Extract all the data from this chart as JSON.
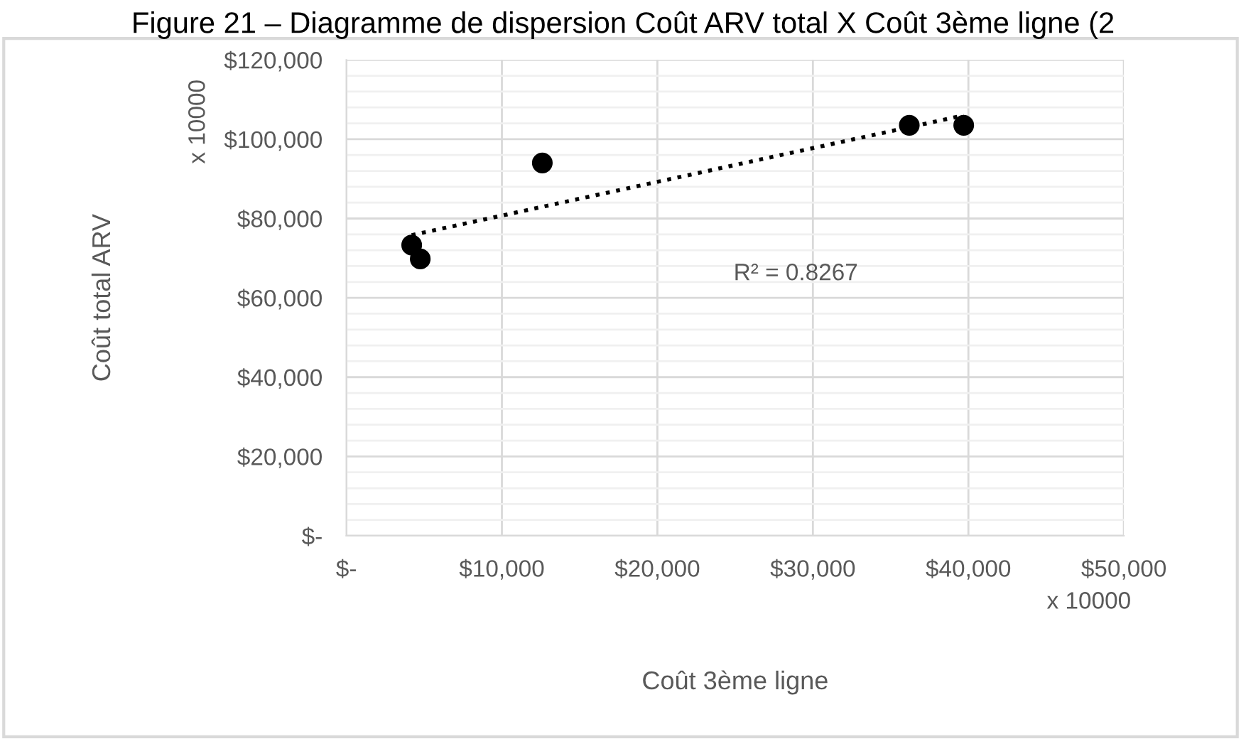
{
  "chart_data": {
    "type": "scatter",
    "title": "Figure 21 – Diagramme de dispersion Coût ARV total X Coût 3ème ligne (2",
    "xlabel": "Coût 3ème ligne",
    "ylabel": "Coût total ARV",
    "series": [
      {
        "color": "#000000",
        "marker": "circle",
        "x": [
          4200,
          4750,
          12600,
          36200,
          39700
        ],
        "values": [
          73300,
          69800,
          94000,
          103500,
          103500
        ]
      },
      {
        "type": "line",
        "color": "#000000",
        "line_style": "dotted",
        "marker": "none",
        "x": [
          4200,
          39700
        ],
        "values": [
          75800,
          106000
        ]
      }
    ],
    "xlim": [
      0,
      50000
    ],
    "xticks": [
      {
        "value": 0,
        "label": "$-"
      },
      {
        "value": 10000,
        "label": "$10,000"
      },
      {
        "value": 20000,
        "label": "$20,000"
      },
      {
        "value": 30000,
        "label": "$30,000"
      },
      {
        "value": 40000,
        "label": "$40,000"
      },
      {
        "value": 50000,
        "label": "$50,000"
      }
    ],
    "ylim": [
      0,
      120000
    ],
    "yticks": [
      {
        "value": 0,
        "label": "$-"
      },
      {
        "value": 4000,
        "label": null
      },
      {
        "value": 8000,
        "label": null
      },
      {
        "value": 12000,
        "label": null
      },
      {
        "value": 16000,
        "label": null
      },
      {
        "value": 20000,
        "label": "$20,000"
      },
      {
        "value": 24000,
        "label": null
      },
      {
        "value": 28000,
        "label": null
      },
      {
        "value": 32000,
        "label": null
      },
      {
        "value": 36000,
        "label": null
      },
      {
        "value": 40000,
        "label": "$40,000"
      },
      {
        "value": 44000,
        "label": null
      },
      {
        "value": 48000,
        "label": null
      },
      {
        "value": 52000,
        "label": null
      },
      {
        "value": 56000,
        "label": null
      },
      {
        "value": 60000,
        "label": "$60,000"
      },
      {
        "value": 64000,
        "label": null
      },
      {
        "value": 68000,
        "label": null
      },
      {
        "value": 72000,
        "label": null
      },
      {
        "value": 76000,
        "label": null
      },
      {
        "value": 80000,
        "label": "$80,000"
      },
      {
        "value": 84000,
        "label": null
      },
      {
        "value": 88000,
        "label": null
      },
      {
        "value": 92000,
        "label": null
      },
      {
        "value": 96000,
        "label": null
      },
      {
        "value": 100000,
        "label": "$100,000"
      },
      {
        "value": 104000,
        "label": null
      },
      {
        "value": 108000,
        "label": null
      },
      {
        "value": 112000,
        "label": null
      },
      {
        "value": 116000,
        "label": null
      },
      {
        "value": 120000,
        "label": "$120,000"
      }
    ],
    "grid": true,
    "legend": false,
    "annotations": [
      "R² = 0.8267",
      "x 10000",
      "x 10000"
    ]
  }
}
